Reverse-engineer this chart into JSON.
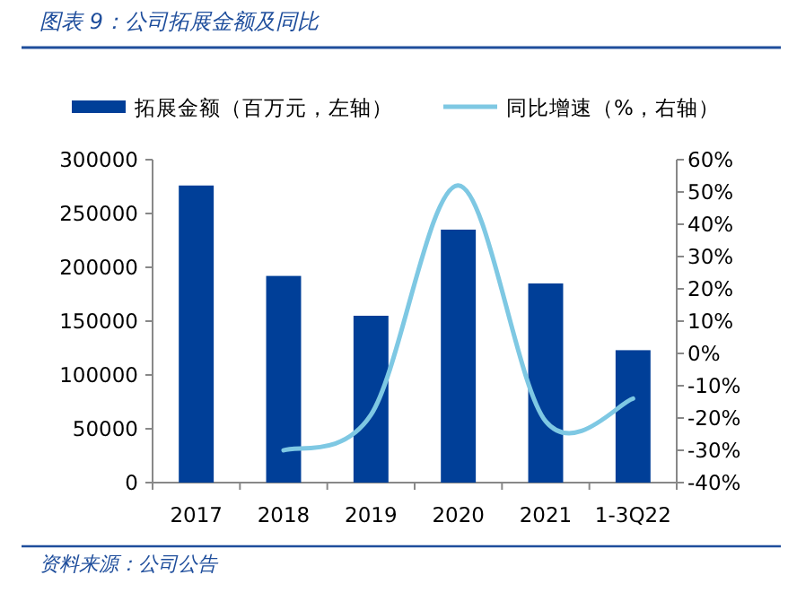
{
  "chart_data": {
    "type": "bar",
    "title": "图表 9：公司拓展金额及同比",
    "annotations": [
      "资料来源：公司公告"
    ],
    "categories": [
      "2017",
      "2018",
      "2019",
      "2020",
      "2021",
      "1-3Q22"
    ],
    "series": [
      {
        "name": "拓展金额（百万元，左轴）",
        "color": "#003f98",
        "values": [
          276000,
          192000,
          155000,
          235000,
          185000,
          123000
        ]
      },
      {
        "name": "同比增速（%，右轴）",
        "type": "line",
        "axis": "y2",
        "color": "#7ec8e3",
        "values": [
          null,
          -30,
          -19,
          52,
          -21,
          -14
        ]
      }
    ],
    "ylim": [
      0,
      300000
    ],
    "yticks": [
      0,
      50000,
      100000,
      150000,
      200000,
      250000,
      300000
    ],
    "y2lim": [
      -40,
      60
    ],
    "y2ticks": [
      {
        "value": -40,
        "label": "-40%"
      },
      {
        "value": -30,
        "label": "-30%"
      },
      {
        "value": -20,
        "label": "-20%"
      },
      {
        "value": -10,
        "label": "-10%"
      },
      {
        "value": 0,
        "label": "0%"
      },
      {
        "value": 10,
        "label": "10%"
      },
      {
        "value": 20,
        "label": "20%"
      },
      {
        "value": 30,
        "label": "30%"
      },
      {
        "value": 40,
        "label": "40%"
      },
      {
        "value": 50,
        "label": "50%"
      },
      {
        "value": 60,
        "label": "60%"
      }
    ],
    "legend": "top",
    "grid": false,
    "marker": "none",
    "line_style": "solid"
  }
}
